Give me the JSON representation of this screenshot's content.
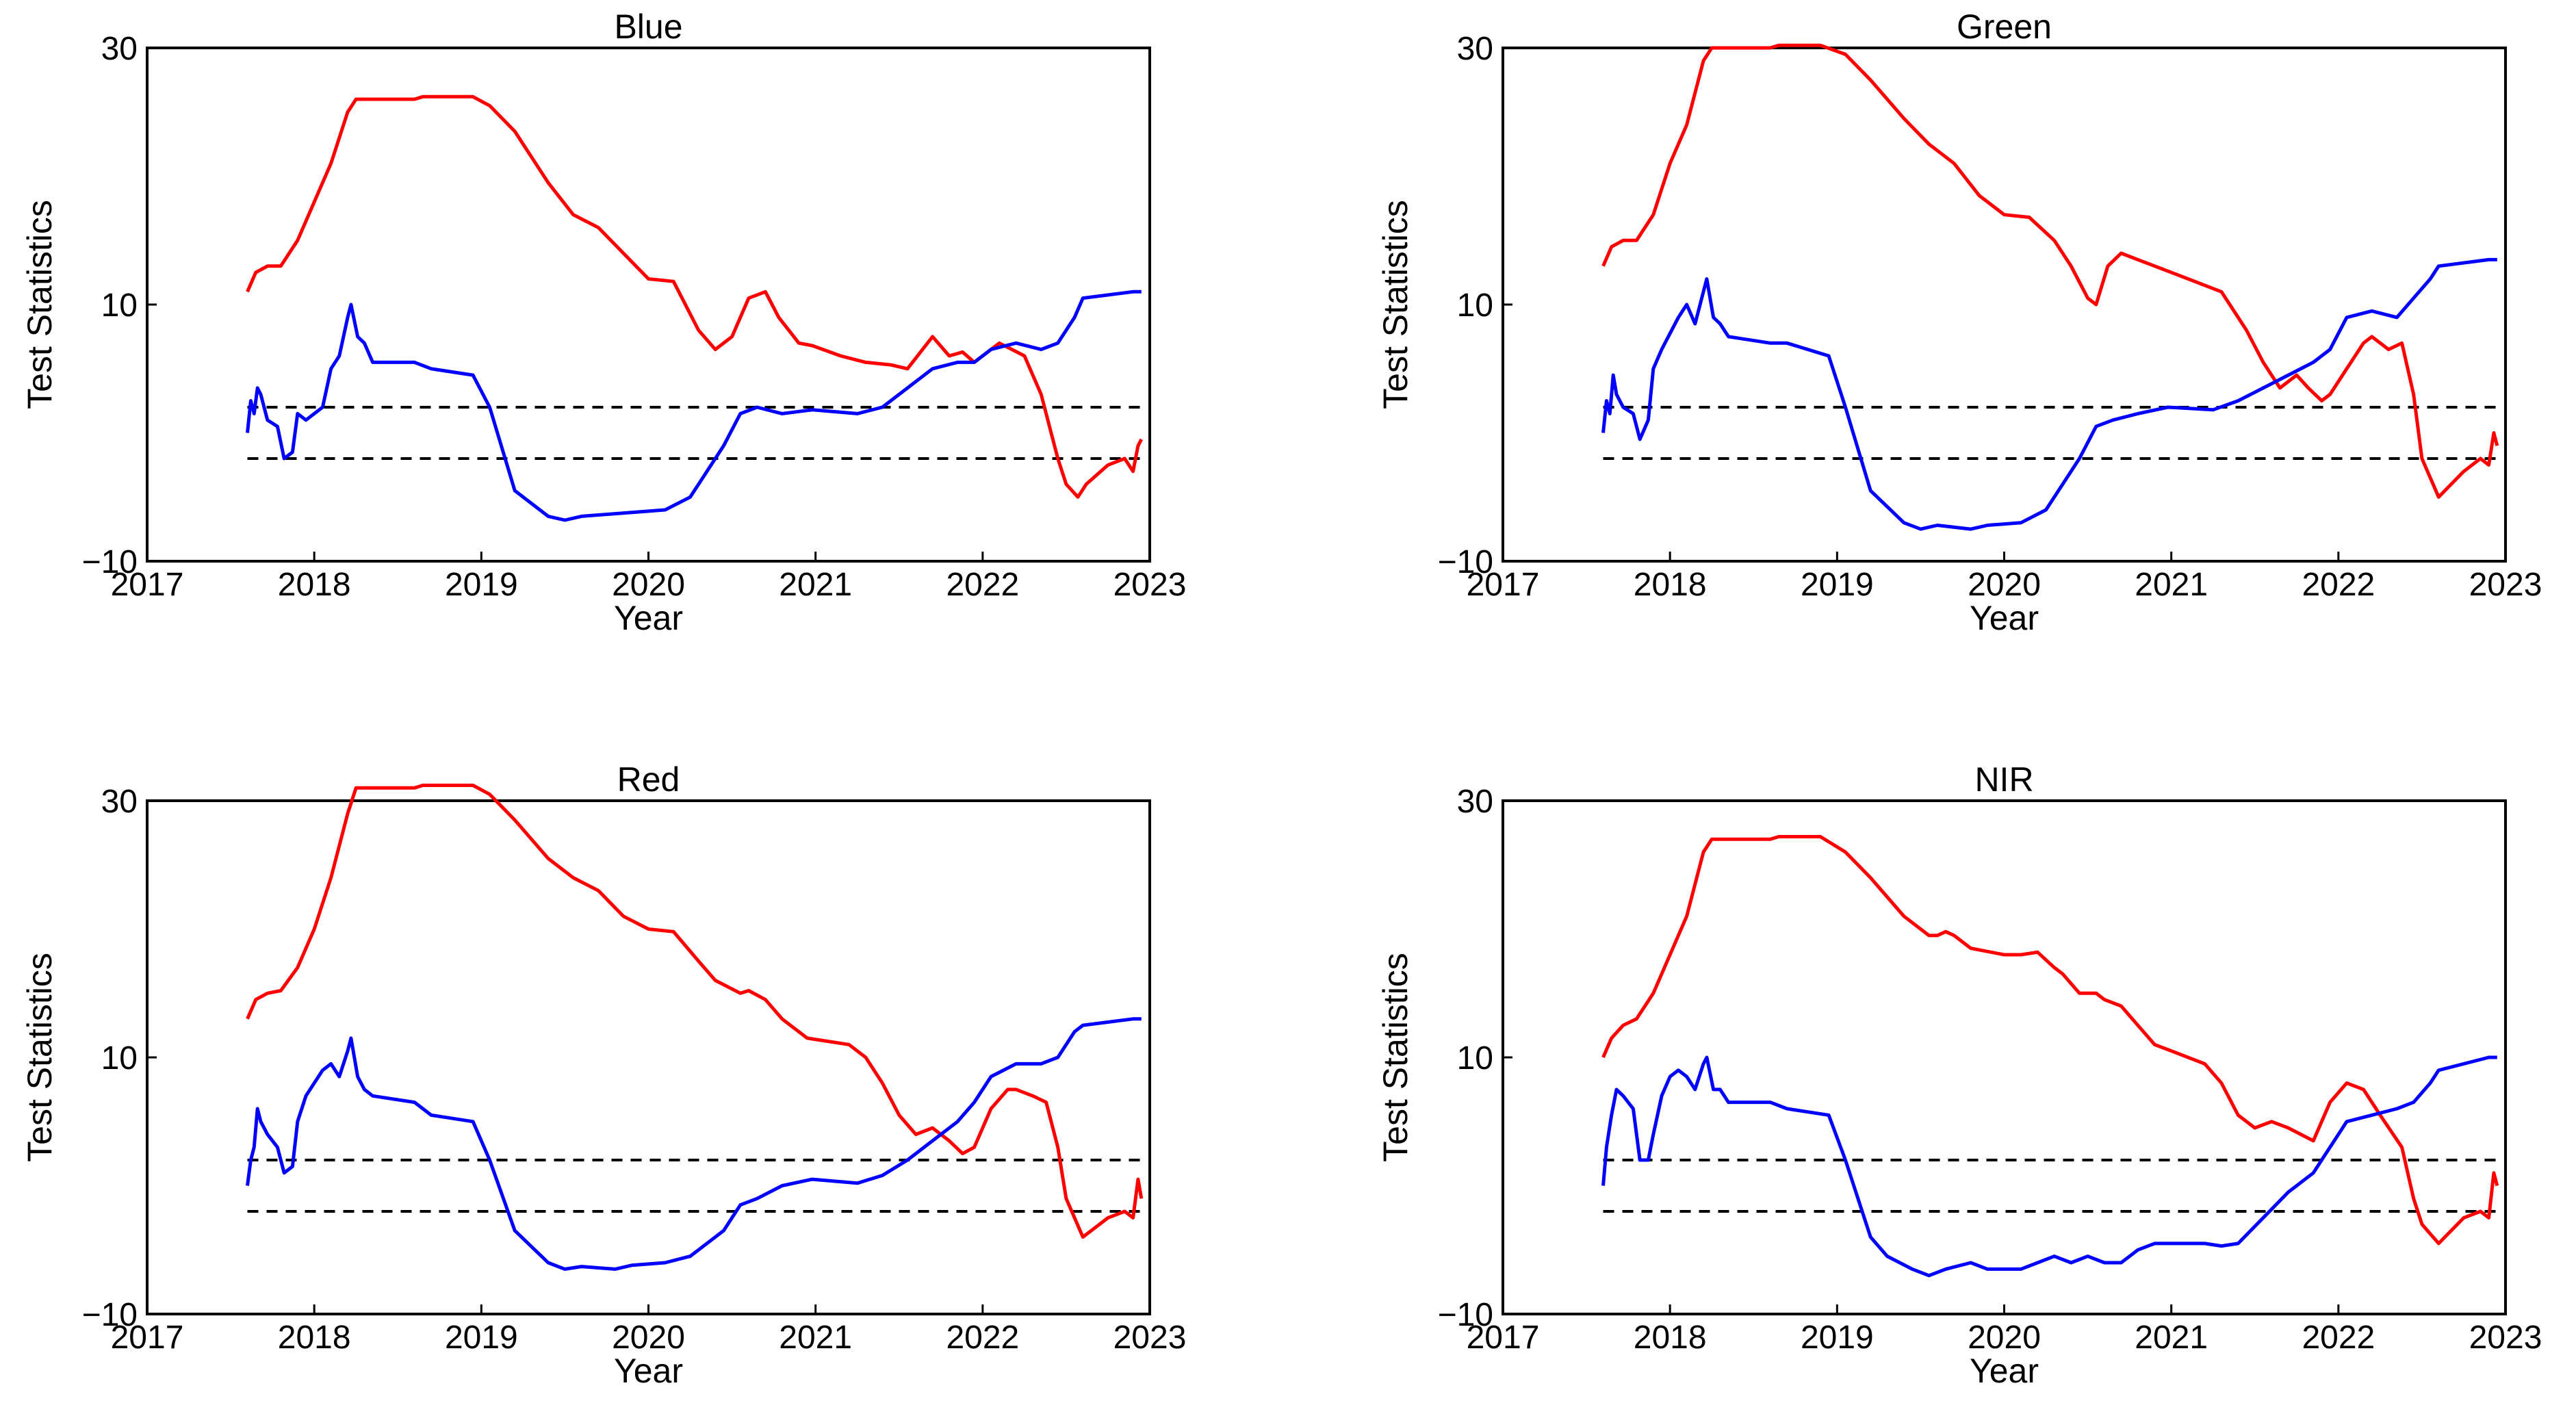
{
  "chart_data": [
    {
      "type": "line",
      "title": "Blue",
      "xlabel": "Year",
      "ylabel": "Test Statistics",
      "xlim": [
        2017,
        2023
      ],
      "ylim": [
        -10,
        30
      ],
      "xticks": [
        "2017",
        "2018",
        "2019",
        "2020",
        "2021",
        "2022",
        "2023"
      ],
      "yticks": [
        "−10",
        "10",
        "30"
      ],
      "thresholds": [
        2,
        -2
      ],
      "series": [
        {
          "name": "red",
          "color": "#ff0000",
          "x": [
            2017.6,
            2017.65,
            2017.72,
            2017.8,
            2017.9,
            2018.0,
            2018.1,
            2018.2,
            2018.25,
            2018.3,
            2018.6,
            2018.65,
            2018.95,
            2019.05,
            2019.2,
            2019.4,
            2019.55,
            2019.7,
            2019.85,
            2020.0,
            2020.15,
            2020.3,
            2020.4,
            2020.5,
            2020.6,
            2020.7,
            2020.78,
            2020.9,
            2020.98,
            2021.15,
            2021.3,
            2021.45,
            2021.55,
            2021.7,
            2021.8,
            2021.88,
            2021.95,
            2022.1,
            2022.25,
            2022.35,
            2022.45,
            2022.5,
            2022.57,
            2022.62,
            2022.75,
            2022.85,
            2022.9,
            2022.93,
            2022.95
          ],
          "y": [
            11,
            12.5,
            13,
            13,
            15,
            18,
            21,
            25,
            26,
            26,
            26,
            26.2,
            26.2,
            25.5,
            23.5,
            19.5,
            17,
            16,
            14,
            12,
            11.8,
            8,
            6.5,
            7.5,
            10.5,
            11,
            9,
            7,
            6.8,
            6,
            5.5,
            5.3,
            5,
            7.5,
            6,
            6.3,
            5.5,
            7,
            6,
            3,
            -2,
            -4,
            -5,
            -4,
            -2.5,
            -2,
            -3,
            -1,
            -0.5
          ]
        },
        {
          "name": "blue",
          "color": "#0000ff",
          "x": [
            2017.6,
            2017.62,
            2017.64,
            2017.66,
            2017.68,
            2017.72,
            2017.78,
            2017.82,
            2017.87,
            2017.9,
            2017.95,
            2018.05,
            2018.1,
            2018.15,
            2018.2,
            2018.22,
            2018.26,
            2018.3,
            2018.35,
            2018.6,
            2018.7,
            2018.95,
            2019.05,
            2019.2,
            2019.4,
            2019.5,
            2019.6,
            2019.8,
            2019.9,
            2020.1,
            2020.25,
            2020.45,
            2020.55,
            2020.65,
            2020.8,
            2020.98,
            2021.25,
            2021.4,
            2021.55,
            2021.7,
            2021.85,
            2021.95,
            2022.05,
            2022.2,
            2022.35,
            2022.45,
            2022.55,
            2022.6,
            2022.9,
            2022.95
          ],
          "y": [
            0,
            2.5,
            1.5,
            3.5,
            3,
            1,
            0.5,
            -2,
            -1.5,
            1.5,
            1,
            2,
            5,
            6,
            9,
            10,
            7.5,
            7,
            5.5,
            5.5,
            5,
            4.5,
            2,
            -4.5,
            -6.5,
            -6.8,
            -6.5,
            -6.3,
            -6.2,
            -6,
            -5,
            -1,
            1.5,
            2,
            1.5,
            1.8,
            1.5,
            2,
            3.5,
            5,
            5.5,
            5.5,
            6.5,
            7,
            6.5,
            7,
            9,
            10.5,
            11,
            11
          ]
        }
      ]
    },
    {
      "type": "line",
      "title": "Green",
      "xlabel": "Year",
      "ylabel": "Test Statistics",
      "xlim": [
        2017,
        2023
      ],
      "ylim": [
        -10,
        30
      ],
      "xticks": [
        "2017",
        "2018",
        "2019",
        "2020",
        "2021",
        "2022",
        "2023"
      ],
      "yticks": [
        "−10",
        "10",
        "30"
      ],
      "thresholds": [
        2,
        -2
      ],
      "series": [
        {
          "name": "red",
          "color": "#ff0000",
          "x": [
            2017.6,
            2017.65,
            2017.72,
            2017.8,
            2017.9,
            2018.0,
            2018.1,
            2018.2,
            2018.25,
            2018.3,
            2018.6,
            2018.65,
            2018.9,
            2019.05,
            2019.2,
            2019.4,
            2019.55,
            2019.7,
            2019.85,
            2020.0,
            2020.15,
            2020.3,
            2020.4,
            2020.5,
            2020.55,
            2020.62,
            2020.7,
            2020.8,
            2021.0,
            2021.3,
            2021.45,
            2021.55,
            2021.65,
            2021.75,
            2021.82,
            2021.9,
            2021.95,
            2022.05,
            2022.15,
            2022.2,
            2022.3,
            2022.38,
            2022.45,
            2022.5,
            2022.6,
            2022.75,
            2022.85,
            2022.9,
            2022.93,
            2022.95
          ],
          "y": [
            13,
            14.5,
            15,
            15,
            17,
            21,
            24,
            29,
            30,
            30,
            30,
            30.2,
            30.2,
            29.5,
            27.5,
            24.5,
            22.5,
            21,
            18.5,
            17,
            16.8,
            15,
            13,
            10.5,
            10,
            13,
            14,
            13.5,
            12.5,
            11,
            8,
            5.5,
            3.5,
            4.5,
            3.5,
            2.5,
            3,
            5,
            7,
            7.5,
            6.5,
            7,
            3,
            -2,
            -5,
            -3,
            -2,
            -2.5,
            0,
            -1
          ]
        },
        {
          "name": "blue",
          "color": "#0000ff",
          "x": [
            2017.6,
            2017.62,
            2017.64,
            2017.66,
            2017.68,
            2017.72,
            2017.78,
            2017.82,
            2017.87,
            2017.9,
            2017.95,
            2018.05,
            2018.1,
            2018.15,
            2018.2,
            2018.22,
            2018.26,
            2018.3,
            2018.35,
            2018.6,
            2018.7,
            2018.95,
            2019.05,
            2019.2,
            2019.4,
            2019.5,
            2019.6,
            2019.8,
            2019.9,
            2020.1,
            2020.25,
            2020.45,
            2020.55,
            2020.65,
            2020.8,
            2020.98,
            2021.25,
            2021.4,
            2021.55,
            2021.7,
            2021.85,
            2021.95,
            2022.05,
            2022.2,
            2022.35,
            2022.45,
            2022.55,
            2022.6,
            2022.9,
            2022.95
          ],
          "y": [
            0,
            2.5,
            1.5,
            4.5,
            3,
            2,
            1.5,
            -0.5,
            1,
            5,
            6.5,
            9,
            10,
            8.5,
            11,
            12,
            9,
            8.5,
            7.5,
            7,
            7,
            6,
            2,
            -4.5,
            -7,
            -7.5,
            -7.2,
            -7.5,
            -7.2,
            -7,
            -6,
            -2,
            0.5,
            1,
            1.5,
            2,
            1.8,
            2.5,
            3.5,
            4.5,
            5.5,
            6.5,
            9,
            9.5,
            9,
            10.5,
            12,
            13,
            13.5,
            13.5
          ]
        }
      ]
    },
    {
      "type": "line",
      "title": "Red",
      "xlabel": "Year",
      "ylabel": "Test Statistics",
      "xlim": [
        2017,
        2023
      ],
      "ylim": [
        -10,
        30
      ],
      "xticks": [
        "2017",
        "2018",
        "2019",
        "2020",
        "2021",
        "2022",
        "2023"
      ],
      "yticks": [
        "−10",
        "10",
        "30"
      ],
      "thresholds": [
        2,
        -2
      ],
      "series": [
        {
          "name": "red",
          "color": "#ff0000",
          "x": [
            2017.6,
            2017.65,
            2017.72,
            2017.8,
            2017.9,
            2018.0,
            2018.1,
            2018.2,
            2018.25,
            2018.3,
            2018.6,
            2018.65,
            2018.95,
            2019.05,
            2019.2,
            2019.4,
            2019.55,
            2019.7,
            2019.85,
            2020.0,
            2020.15,
            2020.3,
            2020.4,
            2020.55,
            2020.6,
            2020.7,
            2020.8,
            2020.95,
            2021.2,
            2021.3,
            2021.4,
            2021.5,
            2021.6,
            2021.7,
            2021.8,
            2021.88,
            2021.95,
            2022.05,
            2022.15,
            2022.2,
            2022.3,
            2022.38,
            2022.45,
            2022.5,
            2022.6,
            2022.75,
            2022.85,
            2022.9,
            2022.93,
            2022.95
          ],
          "y": [
            13,
            14.5,
            15,
            15.2,
            17,
            20,
            24,
            29,
            31,
            31,
            31,
            31.2,
            31.2,
            30.5,
            28.5,
            25.5,
            24,
            23,
            21,
            20,
            19.8,
            17.5,
            16,
            15,
            15.2,
            14.5,
            13,
            11.5,
            11,
            10,
            8,
            5.5,
            4,
            4.5,
            3.5,
            2.5,
            3,
            6,
            7.5,
            7.5,
            7,
            6.5,
            3,
            -1,
            -4,
            -2.5,
            -2,
            -2.5,
            0.5,
            -1
          ]
        },
        {
          "name": "blue",
          "color": "#0000ff",
          "x": [
            2017.6,
            2017.62,
            2017.64,
            2017.66,
            2017.68,
            2017.72,
            2017.78,
            2017.82,
            2017.87,
            2017.9,
            2017.95,
            2018.05,
            2018.1,
            2018.15,
            2018.2,
            2018.22,
            2018.26,
            2018.3,
            2018.35,
            2018.6,
            2018.7,
            2018.95,
            2019.05,
            2019.2,
            2019.4,
            2019.5,
            2019.6,
            2019.8,
            2019.9,
            2020.1,
            2020.25,
            2020.45,
            2020.55,
            2020.65,
            2020.8,
            2020.98,
            2021.25,
            2021.4,
            2021.55,
            2021.7,
            2021.85,
            2021.95,
            2022.05,
            2022.2,
            2022.35,
            2022.45,
            2022.55,
            2022.6,
            2022.9,
            2022.95
          ],
          "y": [
            0,
            2,
            3,
            6,
            5,
            4,
            3,
            1,
            1.5,
            5,
            7,
            9,
            9.5,
            8.5,
            10.5,
            11.5,
            8.5,
            7.5,
            7,
            6.5,
            5.5,
            5,
            2,
            -3.5,
            -6,
            -6.5,
            -6.3,
            -6.5,
            -6.2,
            -6,
            -5.5,
            -3.5,
            -1.5,
            -1,
            0,
            0.5,
            0.2,
            0.8,
            2,
            3.5,
            5,
            6.5,
            8.5,
            9.5,
            9.5,
            10,
            12,
            12.5,
            13,
            13
          ]
        }
      ]
    },
    {
      "type": "line",
      "title": "NIR",
      "xlabel": "Year",
      "ylabel": "Test Statistics",
      "xlim": [
        2017,
        2023
      ],
      "ylim": [
        -10,
        30
      ],
      "xticks": [
        "2017",
        "2018",
        "2019",
        "2020",
        "2021",
        "2022",
        "2023"
      ],
      "yticks": [
        "−10",
        "10",
        "30"
      ],
      "thresholds": [
        2,
        -2
      ],
      "series": [
        {
          "name": "red",
          "color": "#ff0000",
          "x": [
            2017.6,
            2017.65,
            2017.72,
            2017.8,
            2017.9,
            2018.0,
            2018.1,
            2018.2,
            2018.25,
            2018.3,
            2018.6,
            2018.65,
            2018.9,
            2019.05,
            2019.2,
            2019.4,
            2019.55,
            2019.6,
            2019.65,
            2019.7,
            2019.8,
            2020.0,
            2020.1,
            2020.2,
            2020.3,
            2020.35,
            2020.45,
            2020.55,
            2020.6,
            2020.7,
            2020.8,
            2020.9,
            2021.0,
            2021.2,
            2021.3,
            2021.4,
            2021.5,
            2021.6,
            2021.7,
            2021.85,
            2021.95,
            2022.05,
            2022.15,
            2022.25,
            2022.38,
            2022.45,
            2022.5,
            2022.6,
            2022.75,
            2022.85,
            2022.9,
            2022.93,
            2022.95
          ],
          "y": [
            10,
            11.5,
            12.5,
            13,
            15,
            18,
            21,
            26,
            27,
            27,
            27,
            27.2,
            27.2,
            26,
            24,
            21,
            19.5,
            19.5,
            19.8,
            19.5,
            18.5,
            18,
            18,
            18.2,
            17,
            16.5,
            15,
            15,
            14.5,
            14,
            12.5,
            11,
            10.5,
            9.5,
            8,
            5.5,
            4.5,
            5,
            4.5,
            3.5,
            6.5,
            8,
            7.5,
            5.5,
            3,
            -1,
            -3,
            -4.5,
            -2.5,
            -2,
            -2.5,
            1,
            0
          ]
        },
        {
          "name": "blue",
          "color": "#0000ff",
          "x": [
            2017.6,
            2017.62,
            2017.65,
            2017.68,
            2017.72,
            2017.78,
            2017.82,
            2017.87,
            2017.9,
            2017.95,
            2018.0,
            2018.05,
            2018.1,
            2018.15,
            2018.2,
            2018.22,
            2018.26,
            2018.3,
            2018.35,
            2018.6,
            2018.7,
            2018.95,
            2019.05,
            2019.2,
            2019.3,
            2019.45,
            2019.55,
            2019.65,
            2019.8,
            2019.9,
            2020.1,
            2020.2,
            2020.3,
            2020.4,
            2020.5,
            2020.6,
            2020.7,
            2020.8,
            2020.9,
            2021.0,
            2021.2,
            2021.3,
            2021.4,
            2021.55,
            2021.7,
            2021.85,
            2021.95,
            2022.05,
            2022.2,
            2022.35,
            2022.45,
            2022.55,
            2022.6,
            2022.9,
            2022.95
          ],
          "y": [
            0,
            3,
            5.5,
            7.5,
            7,
            6,
            2,
            2,
            4,
            7,
            8.5,
            9,
            8.5,
            7.5,
            9.5,
            10,
            7.5,
            7.5,
            6.5,
            6.5,
            6,
            5.5,
            2,
            -4,
            -5.5,
            -6.5,
            -7,
            -6.5,
            -6,
            -6.5,
            -6.5,
            -6,
            -5.5,
            -6,
            -5.5,
            -6,
            -6,
            -5,
            -4.5,
            -4.5,
            -4.5,
            -4.7,
            -4.5,
            -2.5,
            -0.5,
            1,
            3,
            5,
            5.5,
            6,
            6.5,
            8,
            9,
            10,
            10
          ]
        }
      ]
    }
  ]
}
